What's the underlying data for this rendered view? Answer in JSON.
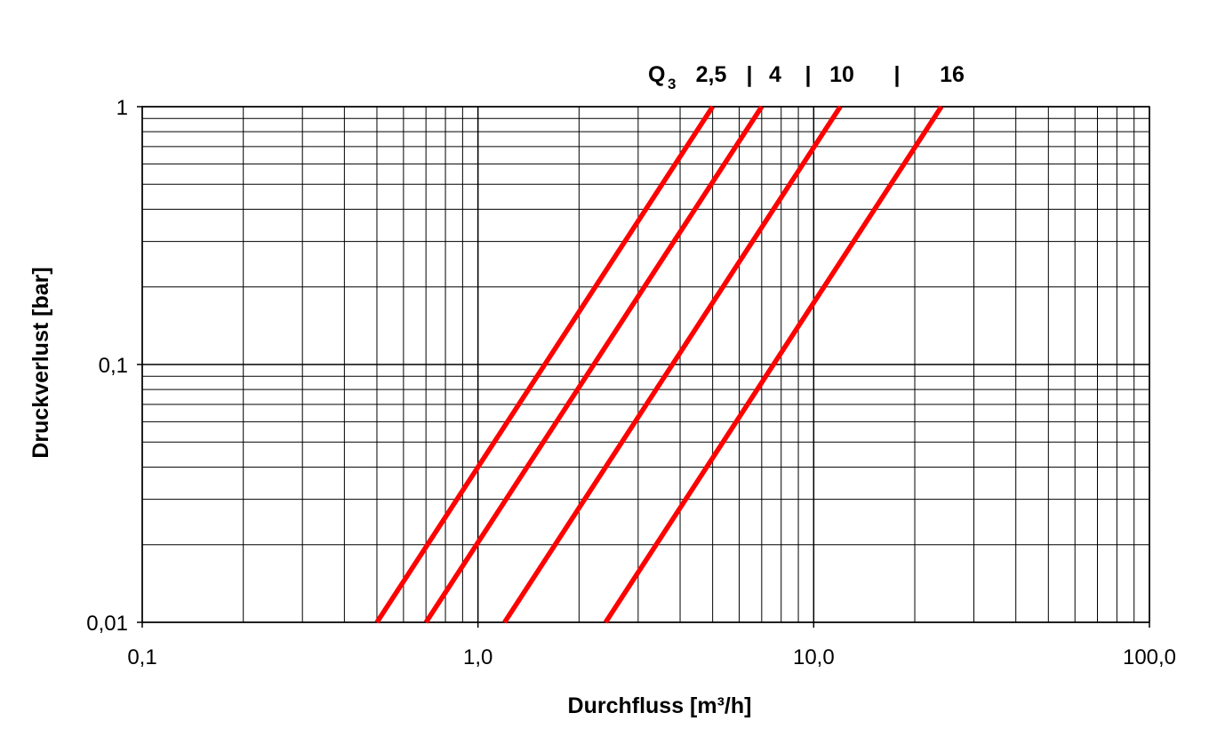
{
  "chart_data": {
    "type": "line",
    "xscale": "log",
    "yscale": "log",
    "xlim": [
      0.1,
      100
    ],
    "ylim": [
      0.01,
      1
    ],
    "xlabel": "Durchfluss [m³/h]",
    "ylabel": "Druckverlust [bar]",
    "xticks": [
      {
        "value": 0.1,
        "label": "0,1"
      },
      {
        "value": 1,
        "label": "1,0"
      },
      {
        "value": 10,
        "label": "10,0"
      },
      {
        "value": 100,
        "label": "100,0"
      }
    ],
    "yticks": [
      {
        "value": 0.01,
        "label": "0,01"
      },
      {
        "value": 0.1,
        "label": "0,1"
      },
      {
        "value": 1,
        "label": "1"
      }
    ],
    "grid": true,
    "line_color": "#ff0000",
    "legend": {
      "prefix": "Q",
      "prefix_sub": "3",
      "entries": [
        "2,5",
        "|",
        "4",
        "|",
        "10",
        "|",
        "16"
      ]
    },
    "series": [
      {
        "name": "2,5",
        "x": [
          0.5,
          5.0
        ],
        "y": [
          0.01,
          1
        ]
      },
      {
        "name": "4",
        "x": [
          0.7,
          7.0
        ],
        "y": [
          0.01,
          1
        ]
      },
      {
        "name": "10",
        "x": [
          1.2,
          12.0
        ],
        "y": [
          0.01,
          1
        ]
      },
      {
        "name": "16",
        "x": [
          2.4,
          24.0
        ],
        "y": [
          0.01,
          1
        ]
      }
    ]
  }
}
